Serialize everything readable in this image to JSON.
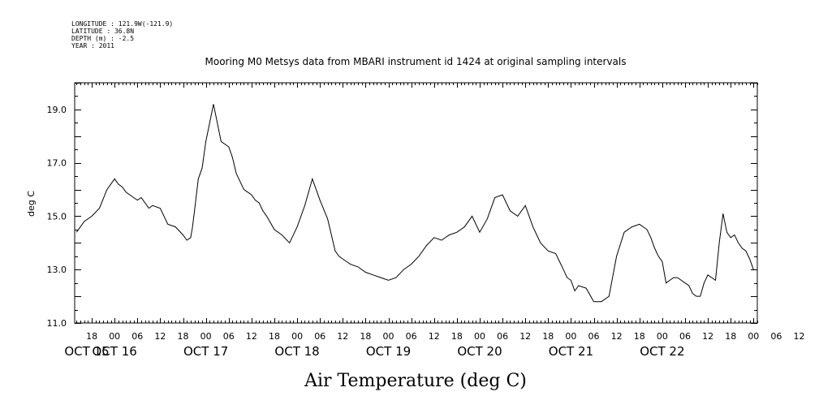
{
  "header": {
    "longitude": "LONGITUDE : 121.9W(-121.9)",
    "latitude": "LATITUDE : 36.8N",
    "depth": "DEPTH (m) : -2.5",
    "year": "YEAR : 2011"
  },
  "chart_data": {
    "type": "line",
    "title": "Mooring M0 Metsys data from MBARI instrument id 1424 at original sampling intervals",
    "xlabel": "Air Temperature (deg C)",
    "ylabel": "deg C",
    "ylim": [
      11.0,
      20.0
    ],
    "y_tick_labels": [
      "11.0",
      "13.0",
      "15.0",
      "17.0",
      "19.0"
    ],
    "x_unit": "hours since OCT 15 00:00",
    "xlim": [
      13.5,
      193
    ],
    "x_hour_labels": [
      "18",
      "00",
      "06",
      "12",
      "18",
      "00",
      "06",
      "12",
      "18",
      "00",
      "06",
      "12",
      "18",
      "00",
      "06",
      "12",
      "18",
      "00",
      "06",
      "12",
      "18",
      "00",
      "06",
      "12",
      "18",
      "00",
      "06",
      "12",
      "18",
      "00",
      "06",
      "12"
    ],
    "date_labels": [
      "OCT 15",
      "OCT 16",
      "OCT 17",
      "OCT 18",
      "OCT 19",
      "OCT 20",
      "OCT 21",
      "OCT 22"
    ],
    "grid": false,
    "series": [
      {
        "name": "",
        "color": "#000000",
        "x": [
          14,
          15,
          16,
          18,
          20,
          22,
          24,
          25,
          26,
          27,
          28,
          29,
          30,
          31,
          32,
          33,
          34,
          36,
          38,
          40,
          42,
          43,
          44,
          44.5,
          45,
          46,
          47,
          48,
          50,
          52,
          54,
          55,
          56,
          58,
          59,
          60,
          61,
          62,
          63,
          64,
          66,
          68,
          70,
          72,
          74,
          76,
          78,
          80,
          81,
          82,
          83,
          84,
          85,
          86,
          88,
          90,
          92,
          94,
          96,
          98,
          100,
          102,
          104,
          106,
          108,
          110,
          112,
          114,
          116,
          118,
          120,
          122,
          124,
          126,
          128,
          130,
          132,
          134,
          136,
          138,
          140,
          141,
          142,
          143,
          144,
          145,
          146,
          148,
          150,
          152,
          154,
          156,
          158,
          160,
          162,
          164,
          165,
          166,
          167,
          168,
          169,
          170,
          171,
          172,
          173,
          174,
          175,
          176,
          177,
          178,
          179,
          180,
          181,
          182,
          183,
          184,
          185,
          186,
          187,
          188,
          189,
          190,
          191,
          192
        ],
        "y": [
          14.4,
          14.6,
          14.8,
          15.0,
          15.3,
          16.0,
          16.4,
          16.2,
          16.1,
          15.9,
          15.8,
          15.7,
          15.6,
          15.7,
          15.5,
          15.3,
          15.4,
          15.3,
          14.7,
          14.6,
          14.3,
          14.1,
          14.2,
          14.6,
          15.2,
          16.4,
          16.8,
          17.8,
          19.2,
          17.8,
          17.6,
          17.2,
          16.6,
          16.0,
          15.9,
          15.8,
          15.6,
          15.5,
          15.2,
          15.0,
          14.5,
          14.3,
          14.0,
          14.6,
          15.4,
          16.4,
          15.6,
          14.9,
          14.3,
          13.7,
          13.5,
          13.4,
          13.3,
          13.2,
          13.1,
          12.9,
          12.8,
          12.7,
          12.6,
          12.7,
          13.0,
          13.2,
          13.5,
          13.9,
          14.2,
          14.1,
          14.3,
          14.4,
          14.6,
          15.0,
          14.4,
          14.9,
          15.7,
          15.8,
          15.2,
          15.0,
          15.4,
          14.6,
          14.0,
          13.7,
          13.6,
          13.3,
          13.0,
          12.7,
          12.6,
          12.2,
          12.4,
          12.3,
          11.8,
          11.8,
          12.0,
          13.5,
          14.4,
          14.6,
          14.7,
          14.5,
          14.2,
          13.8,
          13.5,
          13.3,
          12.5,
          12.6,
          12.7,
          12.7,
          12.6,
          12.5,
          12.4,
          12.1,
          12.0,
          12.0,
          12.5,
          12.8,
          12.7,
          12.6,
          14.0,
          15.1,
          14.4,
          14.2,
          14.3,
          14.0,
          13.8,
          13.7,
          13.4,
          13.0
        ]
      }
    ]
  }
}
